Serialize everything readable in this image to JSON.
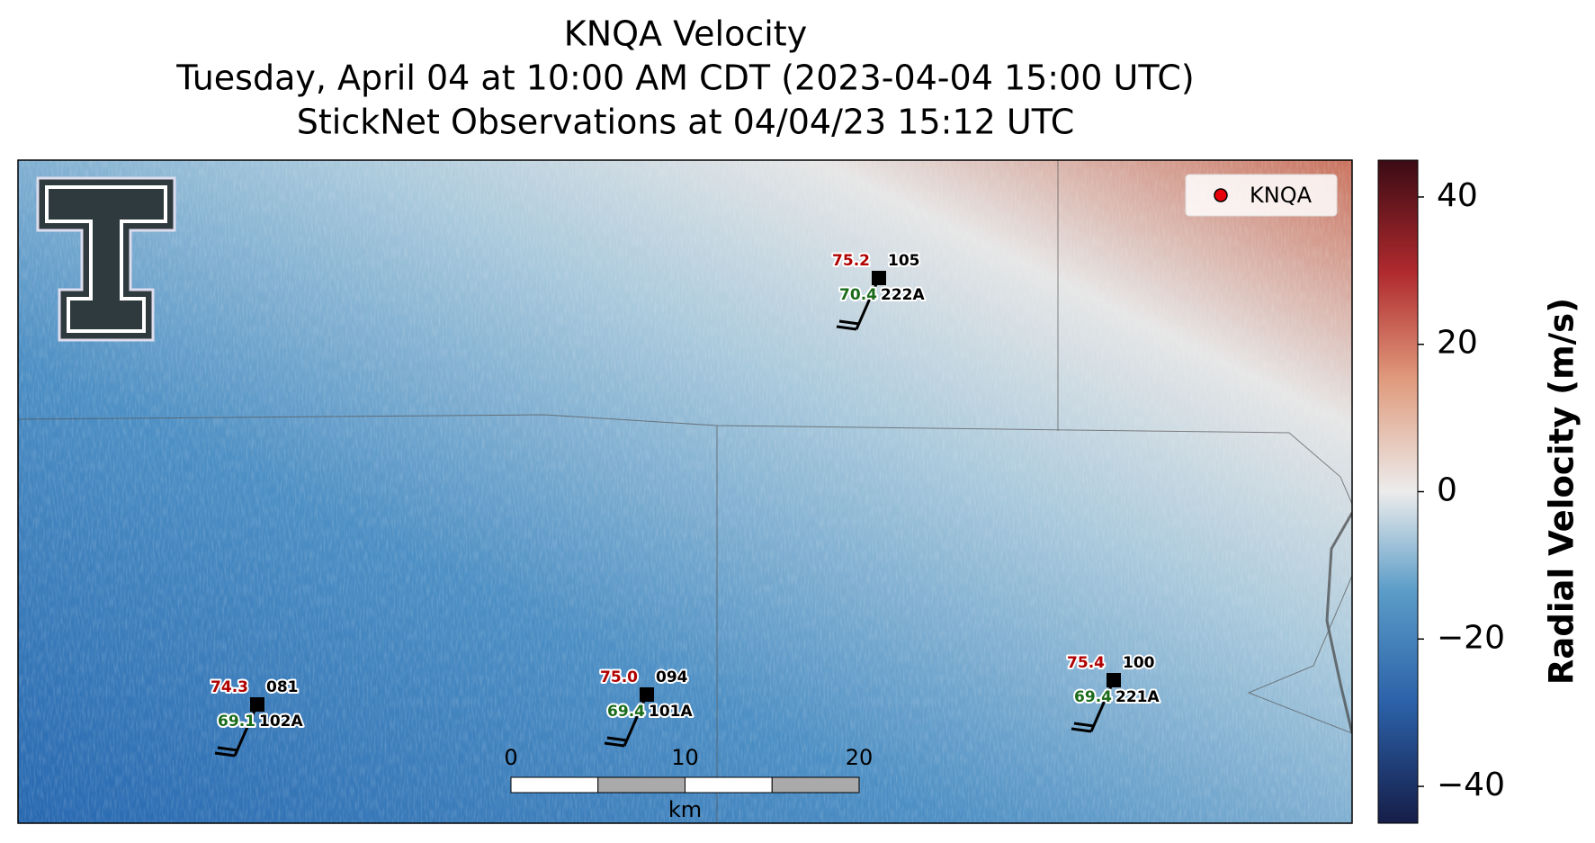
{
  "title": {
    "lines": [
      "KNQA Velocity",
      "Tuesday, April 04 at 10:00 AM CDT (2023-04-04 15:00 UTC)",
      "StickNet Observations at 04/04/23 15:12 UTC"
    ]
  },
  "legend": {
    "label": "KNQA",
    "color": "#e8000b"
  },
  "stations": [
    {
      "temperature": "75.2",
      "dewpoint": "70.4",
      "pressure": "105",
      "id": "222A"
    },
    {
      "temperature": "74.3",
      "dewpoint": "69.1",
      "pressure": "081",
      "id": "102A"
    },
    {
      "temperature": "75.0",
      "dewpoint": "69.4",
      "pressure": "094",
      "id": "101A"
    },
    {
      "temperature": "75.4",
      "dewpoint": "69.4",
      "pressure": "100",
      "id": "221A"
    }
  ],
  "scale_bar": {
    "ticks": [
      0,
      10,
      20
    ],
    "unit": "km"
  },
  "colorbar": {
    "label": "Radial Velocity (m/s)",
    "range": [
      -45,
      45
    ],
    "ticks": [
      {
        "value": -40,
        "label": "−40"
      },
      {
        "value": -20,
        "label": "−20"
      },
      0,
      20,
      40
    ]
  }
}
